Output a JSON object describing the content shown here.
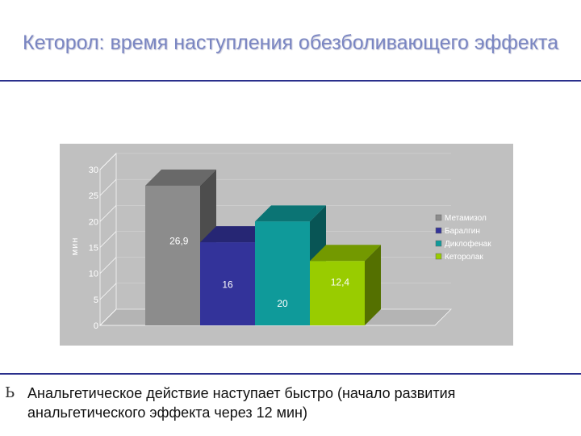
{
  "slide": {
    "title": "Кеторол: время наступления обезболивающего эффекта",
    "bullet_glyph": "Ь",
    "bullet_text": "Анальгетическое действие наступает быстро (начало развития анальгетического эффекта через 12 мин)"
  },
  "chart_data": {
    "type": "bar",
    "title": "",
    "xlabel": "",
    "ylabel": "мин",
    "ylim": [
      0,
      30
    ],
    "yticks": [
      0,
      5,
      10,
      15,
      20,
      25,
      30
    ],
    "legend_position": "right",
    "categories": [
      "Метамизол",
      "Баралгин",
      "Диклофенак",
      "Кеторолак"
    ],
    "values": [
      26.9,
      16,
      20,
      12.4
    ],
    "data_labels": [
      "26,9",
      "16",
      "20",
      "12,4"
    ],
    "colors": [
      "#8c8c8c",
      "#33339a",
      "#0f9a9a",
      "#99cc00"
    ],
    "background": "#c0c0c0"
  }
}
